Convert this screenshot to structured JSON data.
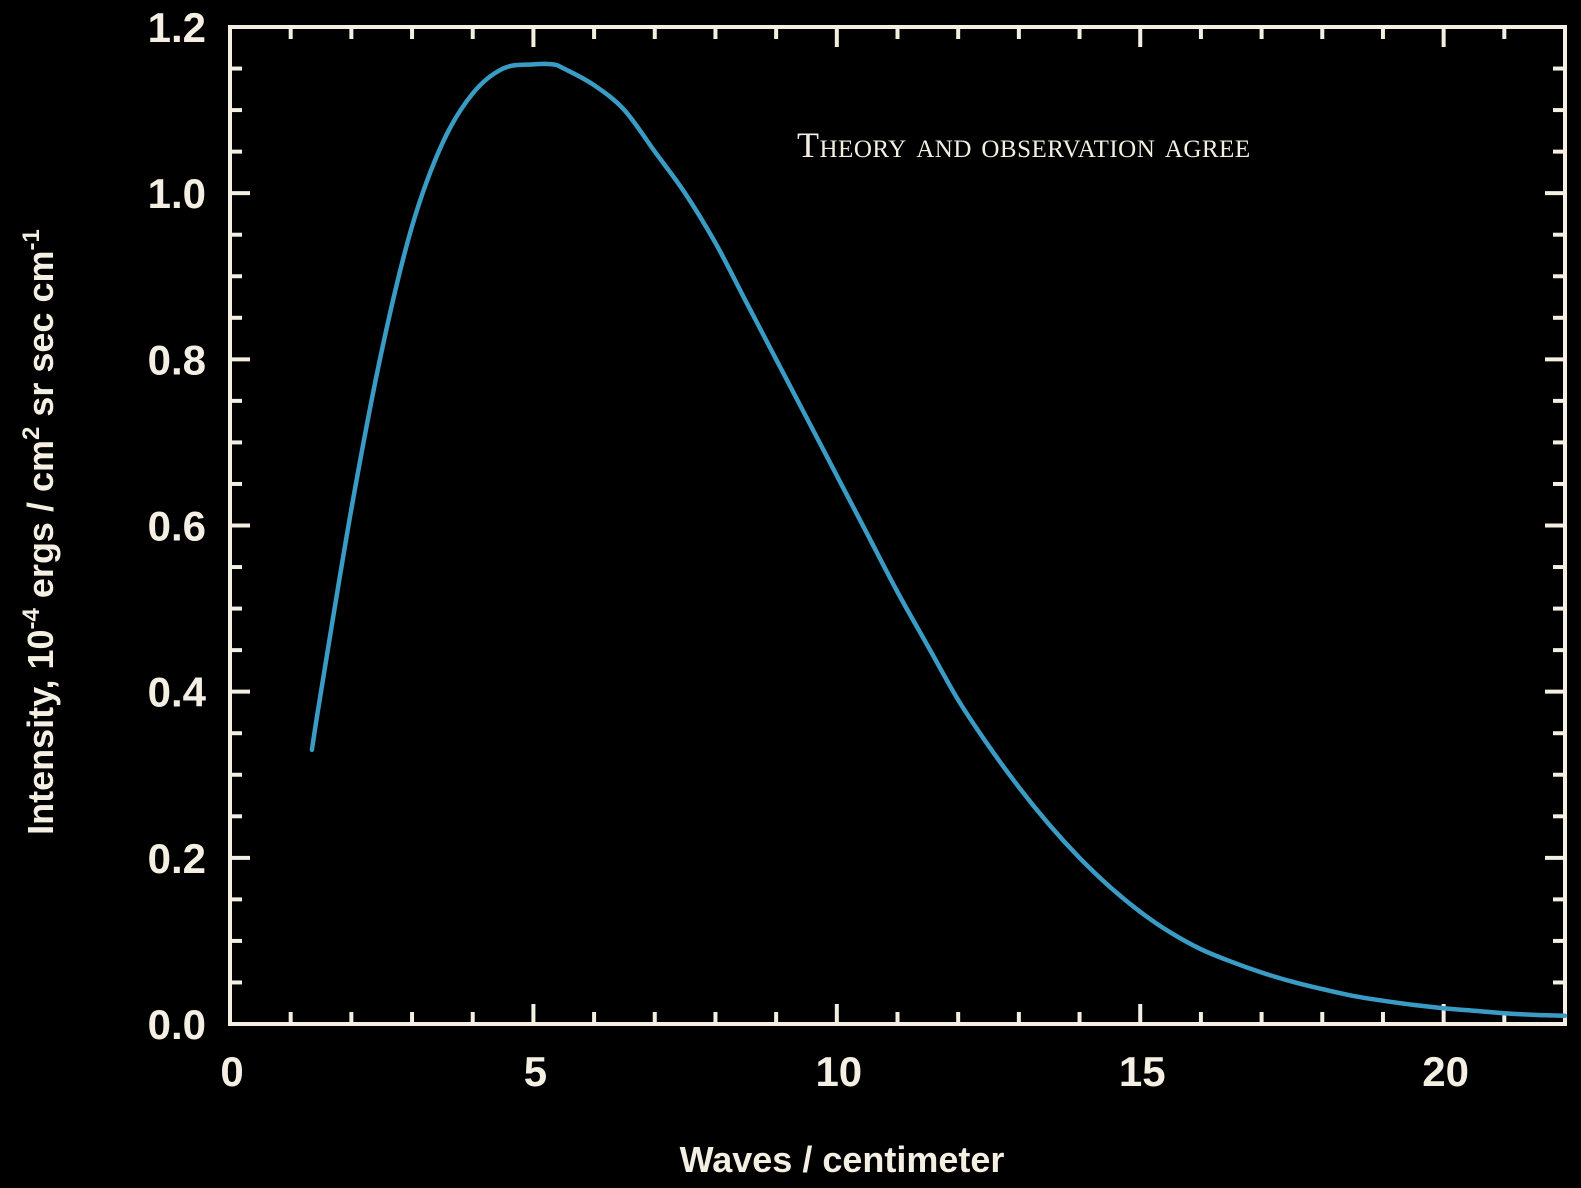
{
  "chart_data": {
    "type": "line",
    "title": "",
    "annotation": "Theory and observation agree",
    "xlabel": "Waves / centimeter",
    "ylabel": {
      "text": "Intensity, 10",
      "sup1": "-4",
      "mid": " ergs / cm",
      "sup2": "2",
      "tail": " sr sec cm",
      "sup3": "-1"
    },
    "xlim": [
      0,
      22
    ],
    "ylim": [
      0,
      1.2
    ],
    "x_ticks": [
      "0",
      "5",
      "10",
      "15",
      "20"
    ],
    "y_ticks": [
      "0.0",
      "0.2",
      "0.4",
      "0.6",
      "0.8",
      "1.0",
      "1.2"
    ],
    "grid": false,
    "series": [
      {
        "color": "#3a9cc4",
        "x": [
          1.35,
          1.5,
          2.0,
          2.5,
          3.0,
          3.5,
          4.0,
          4.5,
          5.0,
          5.32,
          5.5,
          6.0,
          6.5,
          7.0,
          7.5,
          8.0,
          8.5,
          9.0,
          9.5,
          10.0,
          10.5,
          11.0,
          11.5,
          12.0,
          12.5,
          13.0,
          13.5,
          14.0,
          14.5,
          15.0,
          15.5,
          16.0,
          16.5,
          17.0,
          17.5,
          18.0,
          18.5,
          19.0,
          19.5,
          20.0,
          20.5,
          21.0,
          21.5,
          22.0
        ],
        "y": [
          0.33,
          0.4,
          0.62,
          0.81,
          0.96,
          1.06,
          1.12,
          1.15,
          1.155,
          1.155,
          1.15,
          1.13,
          1.1,
          1.05,
          1.0,
          0.94,
          0.87,
          0.8,
          0.73,
          0.66,
          0.59,
          0.52,
          0.455,
          0.39,
          0.335,
          0.285,
          0.24,
          0.2,
          0.165,
          0.135,
          0.11,
          0.09,
          0.075,
          0.062,
          0.051,
          0.042,
          0.034,
          0.028,
          0.023,
          0.019,
          0.016,
          0.013,
          0.011,
          0.01
        ]
      }
    ]
  },
  "colors": {
    "background": "#000000",
    "axis": "#f4efe2",
    "text": "#f4efe2"
  }
}
